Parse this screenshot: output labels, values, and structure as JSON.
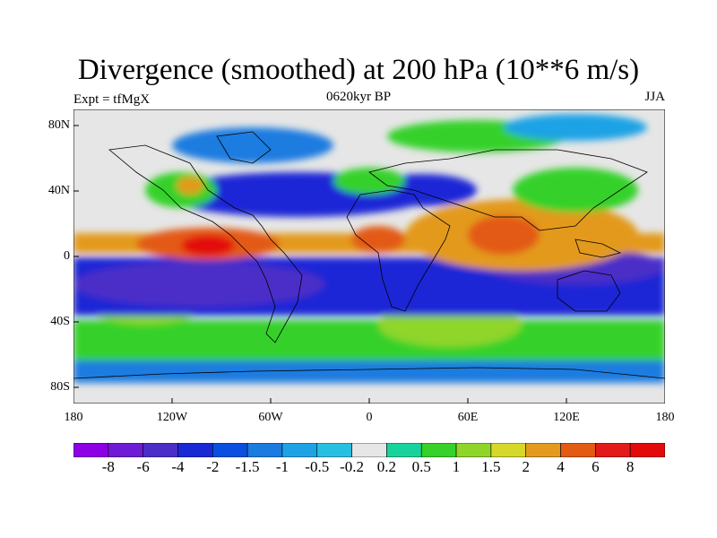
{
  "header": {
    "title": "Divergence (smoothed) at 200 hPa (10**6 m/s)",
    "experiment": "Expt = tfMgX",
    "period": "0620kyr BP",
    "season": "JJA"
  },
  "map": {
    "projection": "cylindrical equidistant",
    "lon_range": [
      -180,
      180
    ],
    "lat_range": [
      -90,
      90
    ],
    "y_ticks": [
      "80N",
      "40N",
      "0",
      "40S",
      "80S"
    ],
    "x_ticks": [
      "180",
      "120W",
      "60W",
      "0",
      "60E",
      "120E",
      "180"
    ]
  },
  "colorbar": {
    "labels": [
      "-8",
      "-6",
      "-4",
      "-2",
      "-1.5",
      "-1",
      "-0.5",
      "-0.2",
      "0.2",
      "0.5",
      "1",
      "1.5",
      "2",
      "4",
      "6",
      "8"
    ],
    "colors": [
      "#8d00e6",
      "#6e1bd6",
      "#4b2dc7",
      "#1a28d6",
      "#0a4fe0",
      "#1a7be0",
      "#1fa3e5",
      "#28c0e0",
      "#e6e6e6",
      "#18d39b",
      "#36d12a",
      "#8fd52a",
      "#d6d82a",
      "#e39a1e",
      "#e35a12",
      "#e31a1a",
      "#e30a0a"
    ]
  }
}
